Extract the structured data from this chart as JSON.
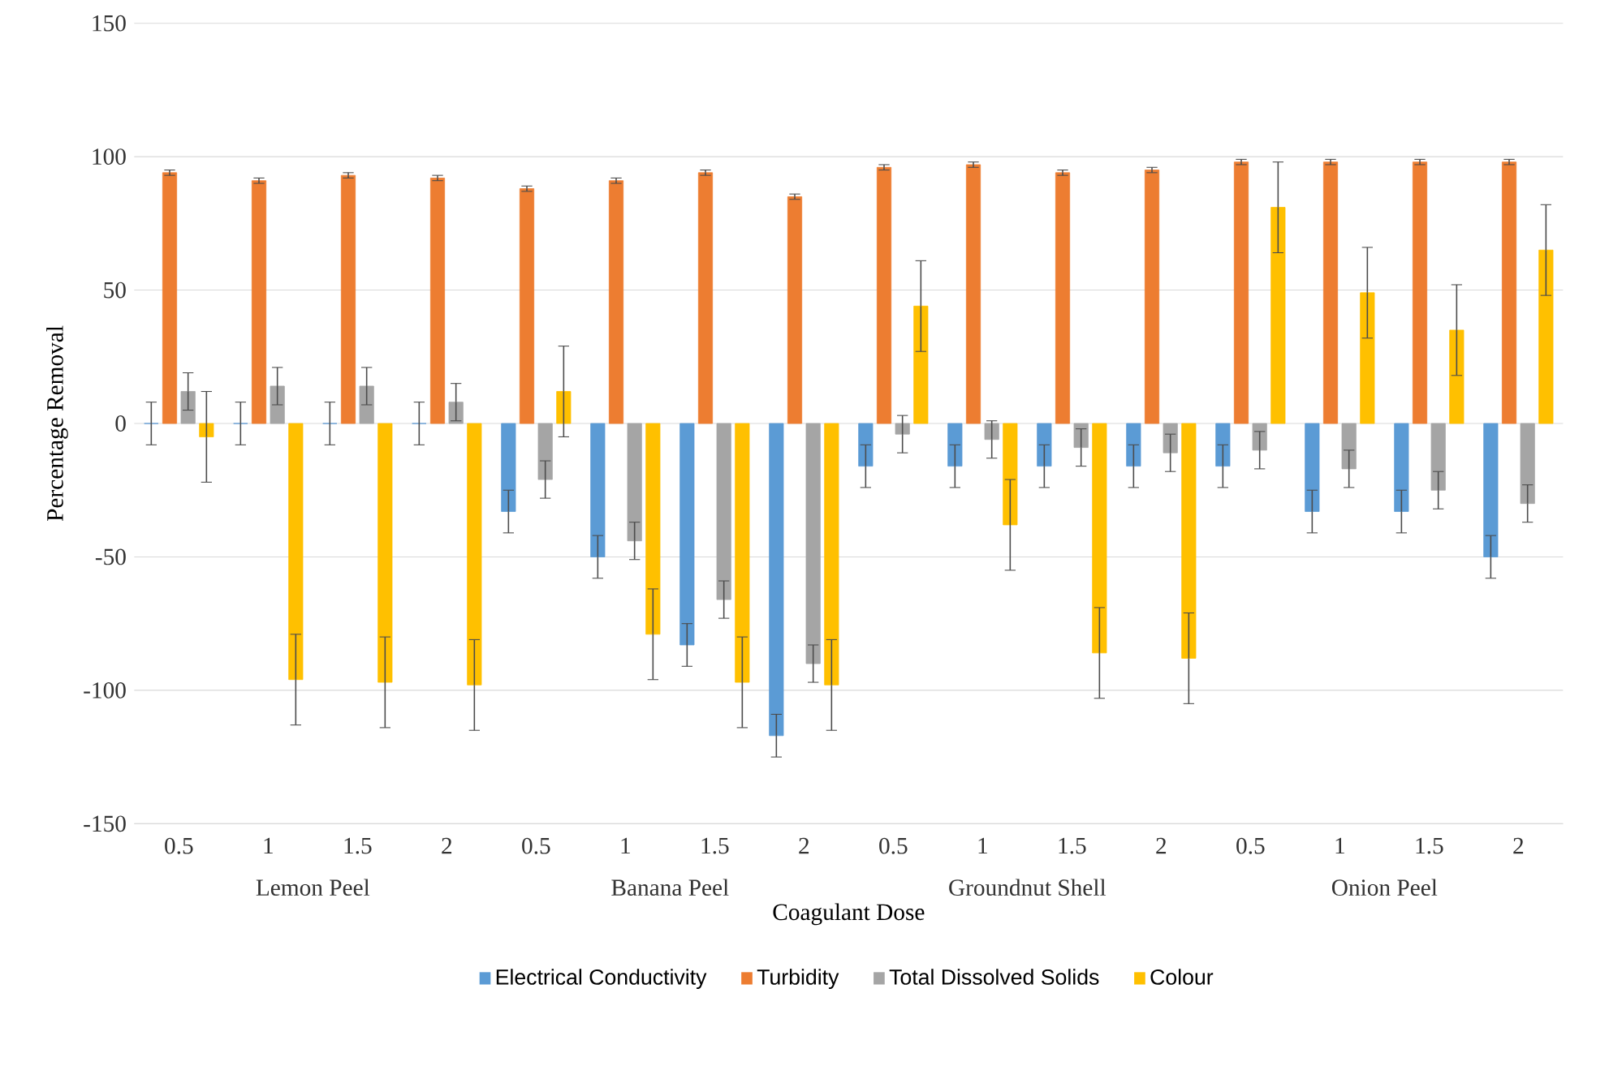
{
  "chart_data": {
    "type": "bar",
    "xlabel": "Coagulant Dose",
    "ylabel": "Percentage Removal",
    "categories": [
      "0.5",
      "1",
      "1.5",
      "2",
      "0.5",
      "1",
      "1.5",
      "2",
      "0.5",
      "1",
      "1.5",
      "2",
      "0.5",
      "1",
      "1.5",
      "2"
    ],
    "series": [
      {
        "name": "Electrical Conductivity",
        "color": "#5b9bd5",
        "values": [
          0,
          0,
          0,
          0,
          -33,
          -50,
          -83,
          -117,
          -16,
          -16,
          -16,
          -16,
          -16,
          -33,
          -33,
          -50
        ],
        "errors": [
          8,
          8,
          8,
          8,
          8,
          8,
          8,
          8,
          8,
          8,
          8,
          8,
          8,
          8,
          8,
          8
        ]
      },
      {
        "name": "Turbidity",
        "color": "#ed7d31",
        "values": [
          94,
          91,
          93,
          92,
          88,
          91,
          94,
          85,
          96,
          97,
          94,
          95,
          98,
          98,
          98,
          98
        ],
        "errors": [
          1,
          1,
          1,
          1,
          1,
          1,
          1,
          1,
          1,
          1,
          1,
          1,
          1,
          1,
          1,
          1
        ]
      },
      {
        "name": "Total Dissolved Solids",
        "color": "#a5a5a5",
        "values": [
          12,
          14,
          14,
          8,
          -21,
          -44,
          -66,
          -90,
          -4,
          -6,
          -9,
          -11,
          -10,
          -17,
          -25,
          -30
        ],
        "errors": [
          7,
          7,
          7,
          7,
          7,
          7,
          7,
          7,
          7,
          7,
          7,
          7,
          7,
          7,
          7,
          7
        ]
      },
      {
        "name": "Colour",
        "color": "#ffc000",
        "values": [
          -5,
          -96,
          -97,
          -98,
          12,
          -79,
          -97,
          -98,
          44,
          -38,
          -86,
          -88,
          81,
          49,
          35,
          65
        ],
        "errors": [
          17,
          17,
          17,
          17,
          17,
          17,
          17,
          17,
          17,
          17,
          17,
          17,
          17,
          17,
          17,
          17
        ]
      }
    ],
    "annotations": [
      "Lemon Peel",
      "Banana Peel",
      "Groundnut Shell",
      "Onion Peel"
    ],
    "ylim": [
      -150,
      150
    ],
    "yticks": [
      -150,
      -100,
      -50,
      0,
      50,
      100,
      150
    ],
    "grid": "y",
    "legend": "bottom"
  }
}
